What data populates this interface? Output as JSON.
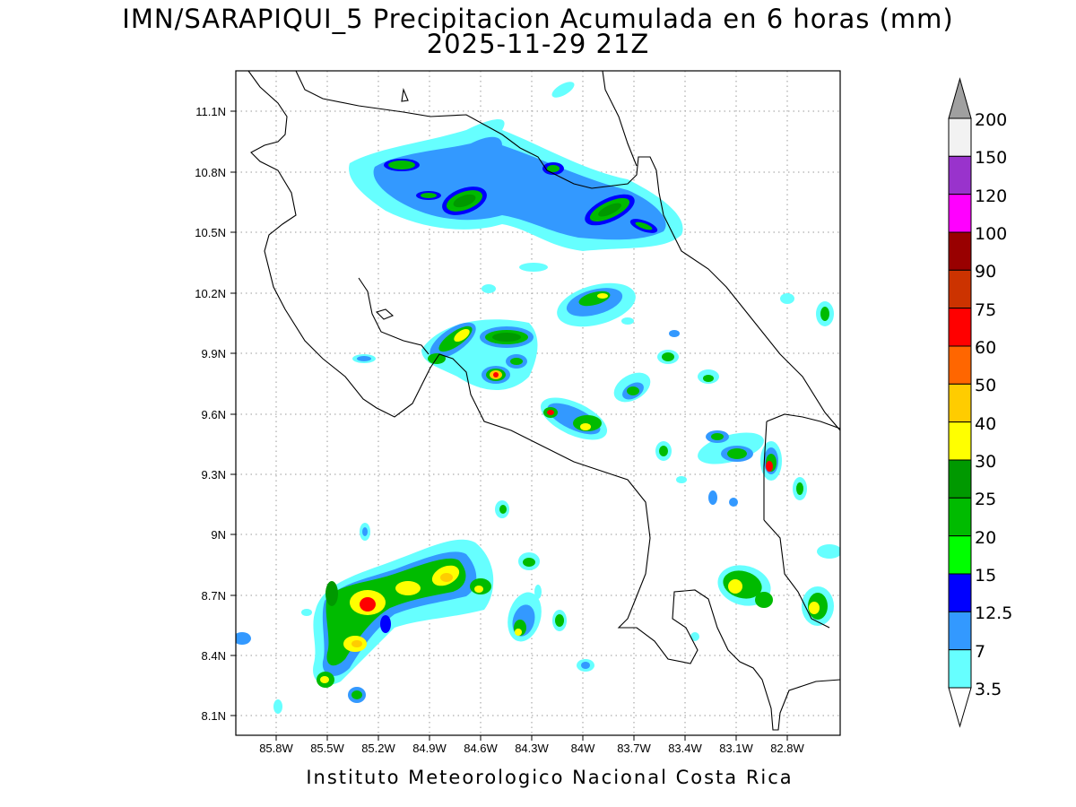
{
  "title_line1": "IMN/SARAPIQUI_5 Precipitacion Acumulada en 6 horas (mm)",
  "title_line2": "2025-11-29 21Z",
  "footer": "Instituto Meteorologico Nacional Costa Rica",
  "map": {
    "lon_labels": [
      "85.8W",
      "85.5W",
      "85.2W",
      "84.9W",
      "84.6W",
      "84.3W",
      "84W",
      "83.7W",
      "83.4W",
      "83.1W",
      "82.8W"
    ],
    "lat_labels": [
      "11.1N",
      "10.8N",
      "10.5N",
      "10.2N",
      "9.9N",
      "9.6N",
      "9.3N",
      "9N",
      "8.7N",
      "8.4N",
      "8.1N"
    ],
    "lon_range": [
      -86.07,
      -82.57
    ],
    "lat_range": [
      8.02,
      11.35
    ]
  },
  "colorbar": {
    "labels": [
      "200",
      "150",
      "120",
      "100",
      "90",
      "75",
      "60",
      "50",
      "40",
      "30",
      "25",
      "20",
      "15",
      "12.5",
      "7",
      "3.5"
    ],
    "colors": [
      "#f2f2f2",
      "#9933cc",
      "#ff00ff",
      "#990000",
      "#cc3300",
      "#ff0000",
      "#ff6600",
      "#ffcc00",
      "#ffff00",
      "#009900",
      "#00bb00",
      "#00ff00",
      "#0000ff",
      "#3399ff",
      "#66ffff"
    ],
    "over_color": "#a0a0a0",
    "under_color": "#ffffff"
  }
}
